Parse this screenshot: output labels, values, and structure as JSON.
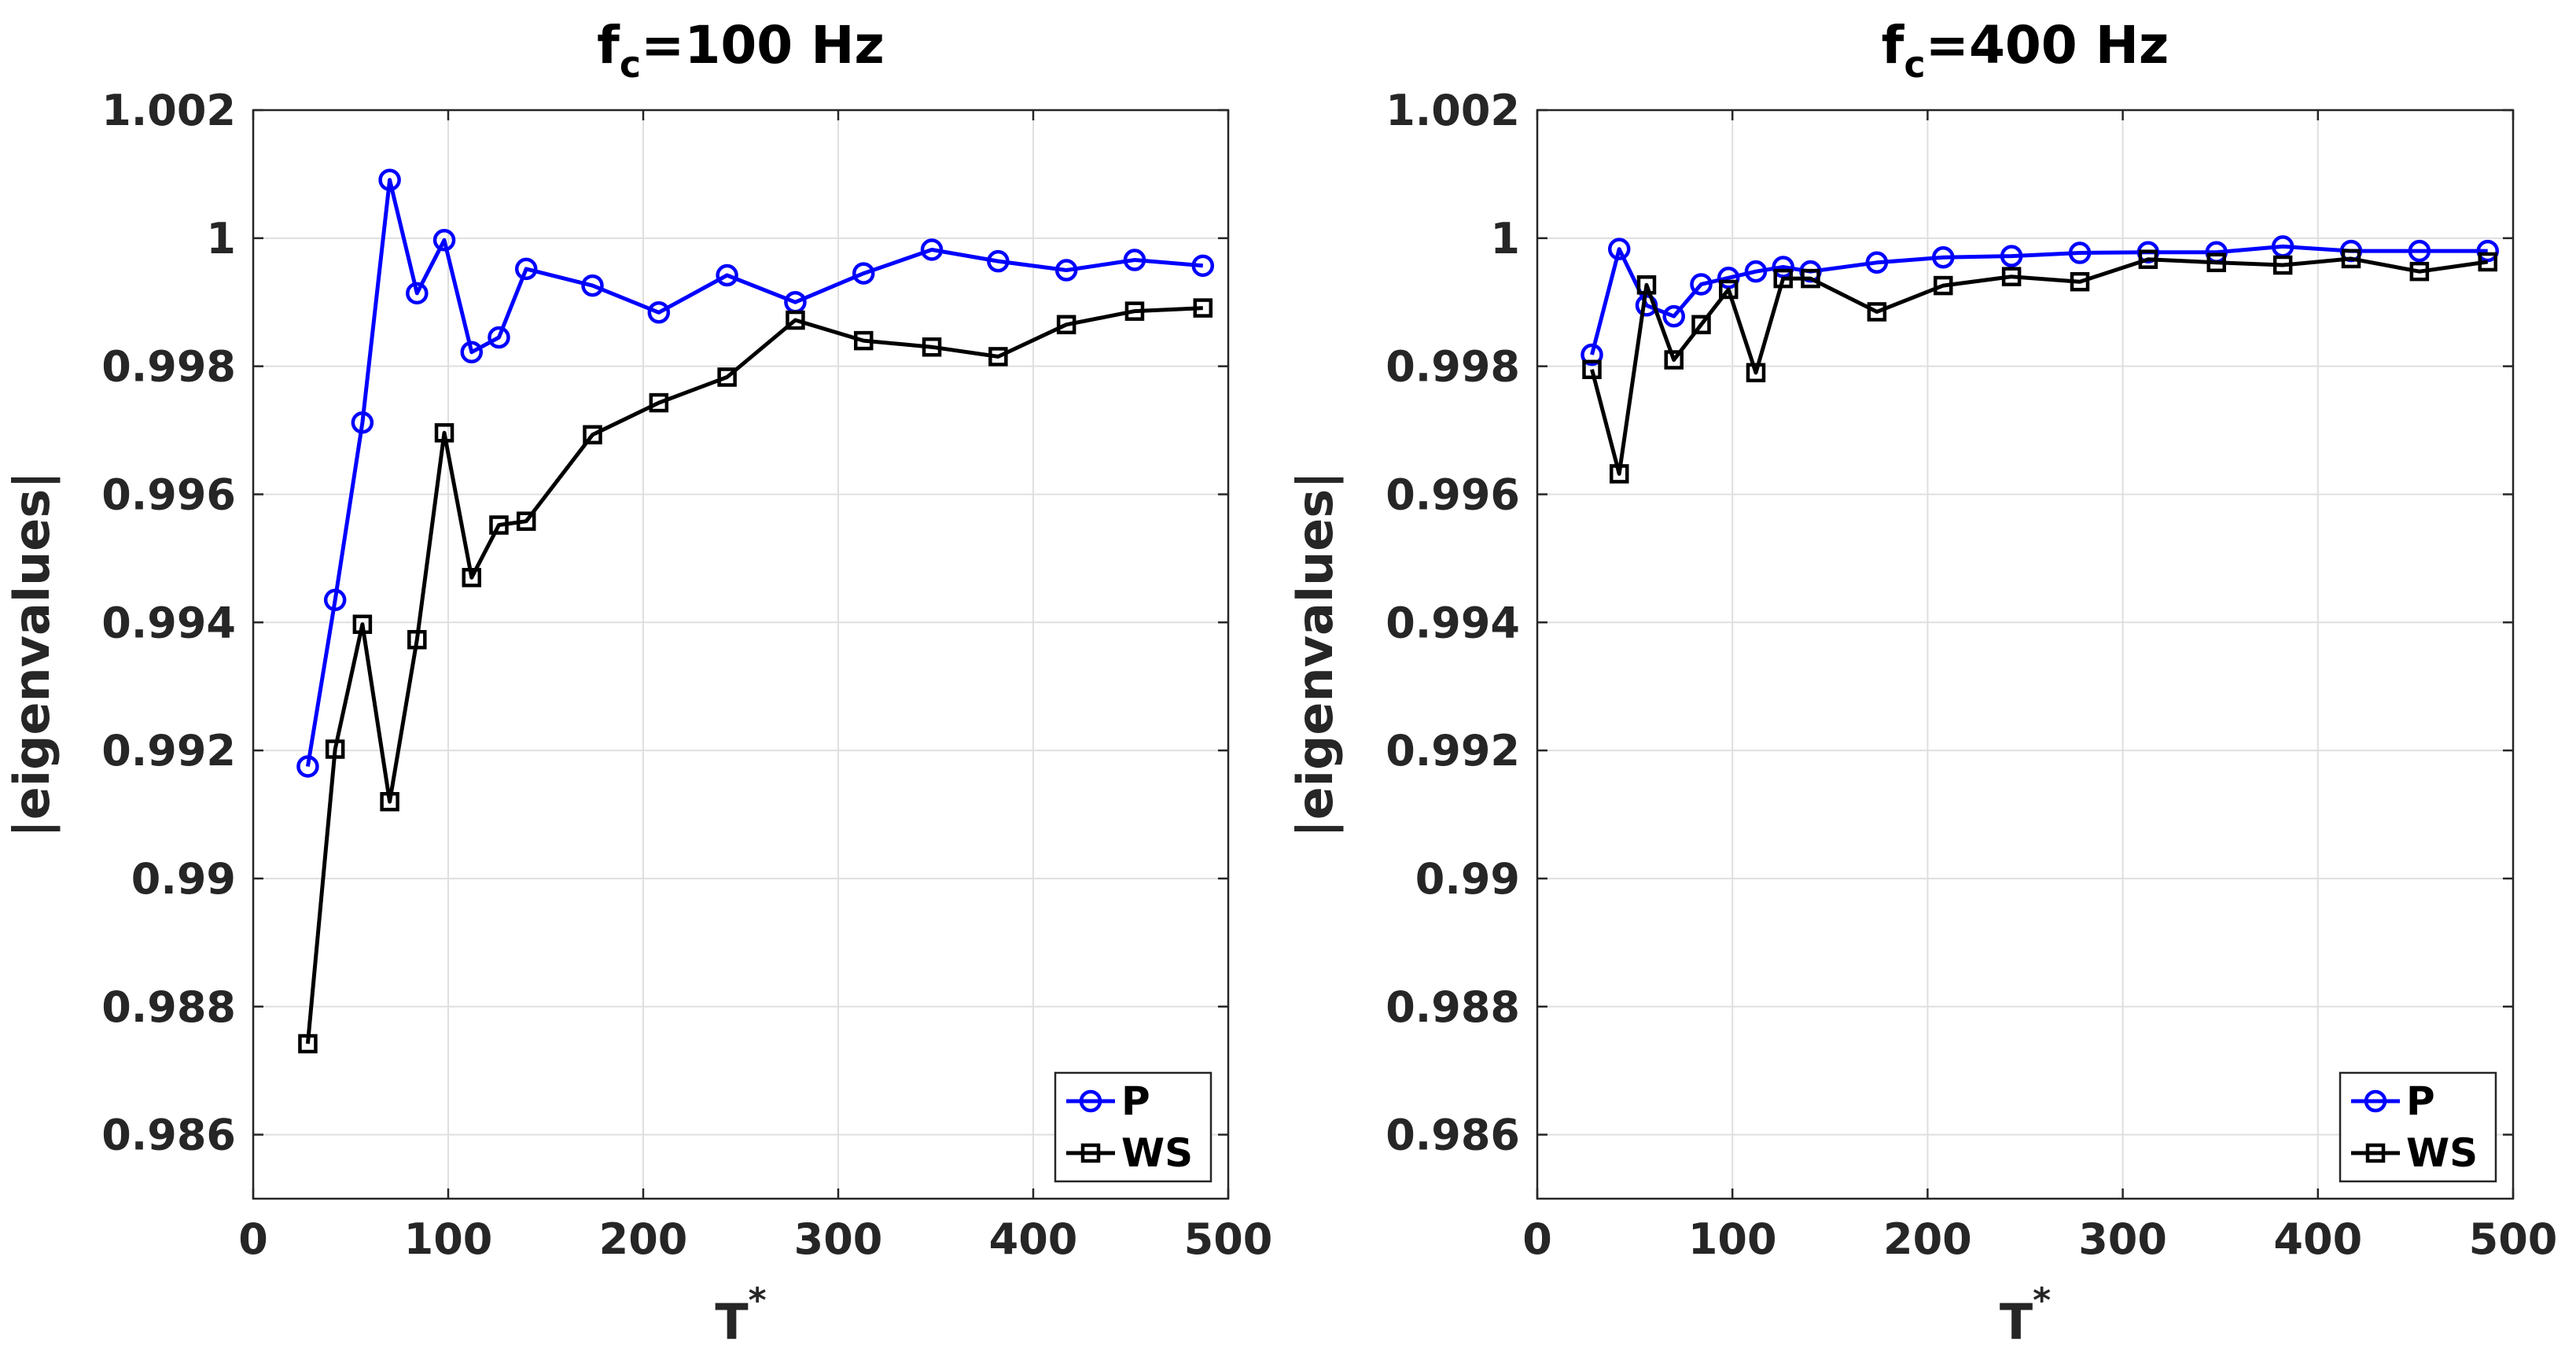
{
  "chart_data": [
    {
      "type": "line",
      "title_main": "f",
      "title_sub": "c",
      "title_rest": "=100 Hz",
      "xlabel_main": "T",
      "xlabel_sup": "*",
      "ylabel": "|eigenvalues|",
      "xlim": [
        0,
        500
      ],
      "ylim": [
        0.985,
        1.002
      ],
      "xticks": [
        0,
        100,
        200,
        300,
        400,
        500
      ],
      "xtick_labels": [
        "0",
        "100",
        "200",
        "300",
        "400",
        "500"
      ],
      "yticks": [
        0.986,
        0.988,
        0.99,
        0.992,
        0.994,
        0.996,
        0.998,
        1.0,
        1.002
      ],
      "ytick_labels": [
        "0.986",
        "0.988",
        "0.99",
        "0.992",
        "0.994",
        "0.996",
        "0.998",
        "1",
        "1.002"
      ],
      "grid": true,
      "legend_position": "bottom-right",
      "x": [
        28,
        42,
        56,
        70,
        84,
        98,
        112,
        126,
        140,
        174,
        208,
        243,
        278,
        313,
        348,
        382,
        417,
        452,
        487
      ],
      "series": [
        {
          "name": "P",
          "color": "#0000ff",
          "marker": "circle",
          "values": [
            0.99175,
            0.99435,
            0.99712,
            1.00091,
            0.99914,
            0.99997,
            0.99822,
            0.99845,
            0.99952,
            0.99926,
            0.99884,
            0.99942,
            0.999,
            0.99945,
            0.99982,
            0.99964,
            0.9995,
            0.99966,
            0.99957
          ]
        },
        {
          "name": "WS",
          "color": "#000000",
          "marker": "square",
          "values": [
            0.98742,
            0.99202,
            0.99397,
            0.9912,
            0.99373,
            0.99696,
            0.9947,
            0.99552,
            0.99558,
            0.99693,
            0.99743,
            0.99783,
            0.99872,
            0.9984,
            0.9983,
            0.99815,
            0.99865,
            0.99886,
            0.99891
          ]
        }
      ]
    },
    {
      "type": "line",
      "title_main": "f",
      "title_sub": "c",
      "title_rest": "=400 Hz",
      "xlabel_main": "T",
      "xlabel_sup": "*",
      "ylabel": "|eigenvalues|",
      "xlim": [
        0,
        500
      ],
      "ylim": [
        0.985,
        1.002
      ],
      "xticks": [
        0,
        100,
        200,
        300,
        400,
        500
      ],
      "xtick_labels": [
        "0",
        "100",
        "200",
        "300",
        "400",
        "500"
      ],
      "yticks": [
        0.986,
        0.988,
        0.99,
        0.992,
        0.994,
        0.996,
        0.998,
        1.0,
        1.002
      ],
      "ytick_labels": [
        "0.986",
        "0.988",
        "0.99",
        "0.992",
        "0.994",
        "0.996",
        "0.998",
        "1",
        "1.002"
      ],
      "grid": true,
      "legend_position": "bottom-right",
      "x": [
        28,
        42,
        56,
        70,
        84,
        98,
        112,
        126,
        140,
        174,
        208,
        243,
        278,
        313,
        348,
        382,
        417,
        452,
        487
      ],
      "series": [
        {
          "name": "P",
          "color": "#0000ff",
          "marker": "circle",
          "values": [
            0.99818,
            0.99983,
            0.99895,
            0.99878,
            0.99928,
            0.99938,
            0.99948,
            0.99955,
            0.99948,
            0.99962,
            0.9997,
            0.99972,
            0.99977,
            0.99978,
            0.99978,
            0.99987,
            0.9998,
            0.9998,
            0.9998
          ]
        },
        {
          "name": "WS",
          "color": "#000000",
          "marker": "square",
          "values": [
            0.99795,
            0.99632,
            0.99927,
            0.9981,
            0.99865,
            0.9992,
            0.9979,
            0.99937,
            0.99937,
            0.99885,
            0.99926,
            0.9994,
            0.99932,
            0.99967,
            0.99962,
            0.99958,
            0.99968,
            0.99948,
            0.99963
          ]
        }
      ]
    }
  ]
}
